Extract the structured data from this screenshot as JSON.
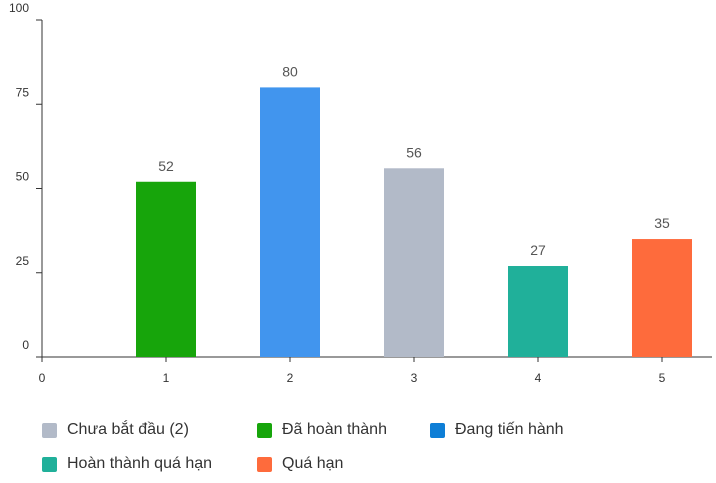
{
  "chart_data": {
    "type": "bar",
    "title": "",
    "xlabel": "",
    "ylabel": "",
    "categories": [
      "1",
      "2",
      "3",
      "4",
      "5"
    ],
    "values": [
      52,
      80,
      56,
      27,
      35
    ],
    "data_labels": [
      "52",
      "80",
      "56",
      "27",
      "35"
    ],
    "bar_colors": [
      "#17a50b",
      "#4195ee",
      "#b2bac8",
      "#20b09a",
      "#fe6b3c"
    ],
    "ylim": [
      0,
      100
    ],
    "y_ticks": [
      0,
      25,
      50,
      75,
      100
    ],
    "x_ticks": [
      0,
      1,
      2,
      3,
      4,
      5
    ],
    "grid": false,
    "legend_position": "bottom",
    "legend": [
      {
        "label": "Chưa bắt đầu (2)",
        "color": "#b2bac8"
      },
      {
        "label": "Đã hoàn thành",
        "color": "#17a50b"
      },
      {
        "label": "Đang tiến hành",
        "color": "#0e7ed6"
      },
      {
        "label": "Hoàn thành quá hạn",
        "color": "#20b09a"
      },
      {
        "label": "Quá hạn",
        "color": "#fe6b3c"
      }
    ]
  }
}
